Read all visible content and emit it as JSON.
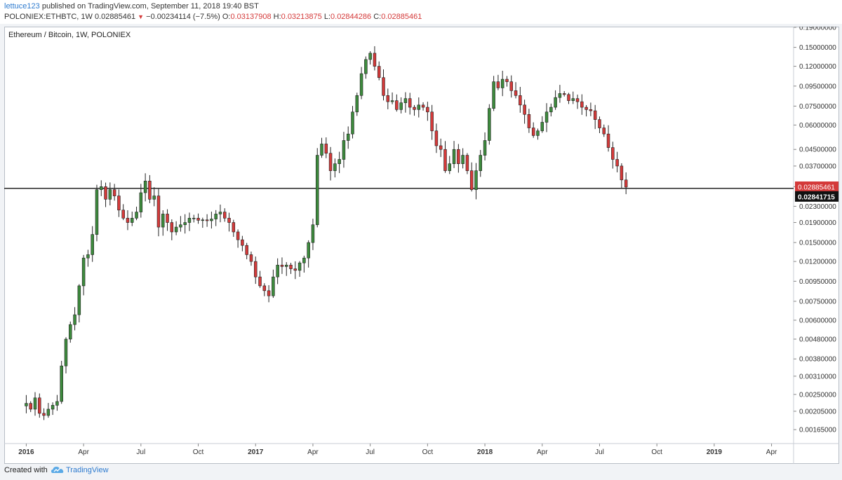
{
  "header": {
    "author": "lettuce123",
    "published_text": "published on TradingView.com, September 11, 2018 19:40 BST",
    "symbol_line": "POLONIEX:ETHBTC, 1W",
    "last": "0.02885461",
    "change": "−0.00234114 (−7.5%)",
    "ohlc_labels": [
      "O:",
      "H:",
      "L:",
      "C:"
    ],
    "ohlc_values": [
      "0.03137908",
      "0.03213875",
      "0.02844286",
      "0.02885461"
    ]
  },
  "chart_title": "Ethereum / Bitcoin, 1W, POLONIEX",
  "footer": {
    "created_with": "Created with",
    "brand": "TradingView"
  },
  "colors": {
    "up": "#3d8b3d",
    "down": "#d43a3a",
    "price_label_bg": "#d43a3a",
    "line_label_bg": "#111111",
    "brand": "#2e7bcf"
  },
  "chart_data": {
    "type": "candlestick",
    "title": "Ethereum / Bitcoin, 1W, POLONIEX",
    "y_scale": "log",
    "ylim": [
      0.0014,
      0.19
    ],
    "y_ticks": [
      "0.19000000",
      "0.15000000",
      "0.12000000",
      "0.09500000",
      "0.07500000",
      "0.06000000",
      "0.04500000",
      "0.03700000",
      "0.02900000",
      "0.02300000",
      "0.01900000",
      "0.01500000",
      "0.01200000",
      "0.00950000",
      "0.00750000",
      "0.00600000",
      "0.00480000",
      "0.00380000",
      "0.00310000",
      "0.00250000",
      "0.00205000",
      "0.00165000"
    ],
    "x_tick_labels": [
      "2016",
      "Apr",
      "Jul",
      "Oct",
      "2017",
      "Apr",
      "Jul",
      "Oct",
      "2018",
      "Apr",
      "Jul",
      "Oct",
      "2019",
      "Apr"
    ],
    "x_tick_bold": [
      true,
      false,
      false,
      false,
      true,
      false,
      false,
      false,
      true,
      false,
      false,
      false,
      true,
      false
    ],
    "x_tick_weeks": [
      0,
      13,
      26,
      39,
      52,
      65,
      78,
      91,
      104,
      117,
      130,
      143,
      156,
      169
    ],
    "x_range_weeks": [
      -5,
      174
    ],
    "horizontal_line": 0.02841715,
    "horizontal_line_label": "0.02841715",
    "last_price_label": "0.02885461",
    "weekly_closes": [
      0.00225,
      0.0021,
      0.0024,
      0.002,
      0.00195,
      0.0021,
      0.0022,
      0.0023,
      0.0035,
      0.0048,
      0.0057,
      0.0064,
      0.009,
      0.0125,
      0.013,
      0.0165,
      0.028,
      0.029,
      0.025,
      0.028,
      0.026,
      0.022,
      0.02,
      0.019,
      0.02,
      0.0215,
      0.027,
      0.031,
      0.025,
      0.026,
      0.018,
      0.021,
      0.019,
      0.017,
      0.018,
      0.0185,
      0.019,
      0.02,
      0.02,
      0.0195,
      0.0196,
      0.0194,
      0.0198,
      0.021,
      0.0215,
      0.02,
      0.019,
      0.017,
      0.0155,
      0.0145,
      0.013,
      0.012,
      0.01,
      0.009,
      0.0085,
      0.008,
      0.01,
      0.0115,
      0.0113,
      0.0115,
      0.011,
      0.0108,
      0.0118,
      0.0125,
      0.015,
      0.0185,
      0.042,
      0.048,
      0.043,
      0.035,
      0.038,
      0.04,
      0.05,
      0.054,
      0.07,
      0.085,
      0.11,
      0.13,
      0.14,
      0.12,
      0.105,
      0.085,
      0.079,
      0.08,
      0.072,
      0.078,
      0.082,
      0.074,
      0.072,
      0.076,
      0.074,
      0.07,
      0.056,
      0.047,
      0.045,
      0.035,
      0.038,
      0.045,
      0.038,
      0.042,
      0.035,
      0.028,
      0.035,
      0.042,
      0.05,
      0.073,
      0.1,
      0.093,
      0.103,
      0.1,
      0.09,
      0.085,
      0.076,
      0.068,
      0.058,
      0.053,
      0.056,
      0.062,
      0.07,
      0.074,
      0.083,
      0.087,
      0.086,
      0.08,
      0.082,
      0.079,
      0.074,
      0.072,
      0.071,
      0.064,
      0.058,
      0.054,
      0.046,
      0.04,
      0.037,
      0.0314,
      0.02885461
    ]
  }
}
